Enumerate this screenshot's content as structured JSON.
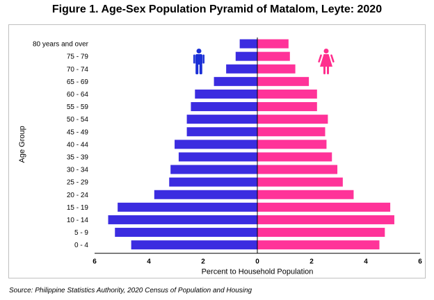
{
  "title": "Figure 1. Age-Sex Population Pyramid of Matalom, Leyte: 2020",
  "source": "Source: Philippine Statistics Authority, 2020 Census of Population and Housing",
  "chart_data": {
    "type": "bar",
    "orientation": "horizontal-pyramid",
    "categories": [
      "80 years and over",
      "75 - 79",
      "70 - 74",
      "65 - 69",
      "60 - 64",
      "55 - 59",
      "50 - 54",
      "45 - 49",
      "40 - 44",
      "35 - 39",
      "30 - 34",
      "25 - 29",
      "20 - 24",
      "15 - 19",
      "10 - 14",
      "5 - 9",
      "0 - 4"
    ],
    "series": [
      {
        "color": "#3b2ce0",
        "side": "left",
        "values": [
          0.65,
          0.8,
          1.15,
          1.6,
          2.3,
          2.45,
          2.6,
          2.6,
          3.05,
          2.9,
          3.2,
          3.25,
          3.8,
          5.15,
          5.5,
          5.25,
          4.65
        ]
      },
      {
        "color": "#ff3399",
        "side": "right",
        "values": [
          1.15,
          1.2,
          1.4,
          1.9,
          2.2,
          2.2,
          2.6,
          2.5,
          2.55,
          2.75,
          2.95,
          3.15,
          3.55,
          4.9,
          5.05,
          4.7,
          4.5
        ]
      }
    ],
    "xlabel": "Percent to Household Population",
    "ylabel": "Age Group",
    "xlim": [
      -6,
      6
    ],
    "xticks": [
      -6,
      -4,
      -2,
      0,
      2,
      4,
      6
    ],
    "xtick_labels": [
      "6",
      "4",
      "2",
      "0",
      "2",
      "4",
      "6"
    ],
    "grid": false,
    "icons": [
      "male-icon",
      "female-icon"
    ]
  }
}
